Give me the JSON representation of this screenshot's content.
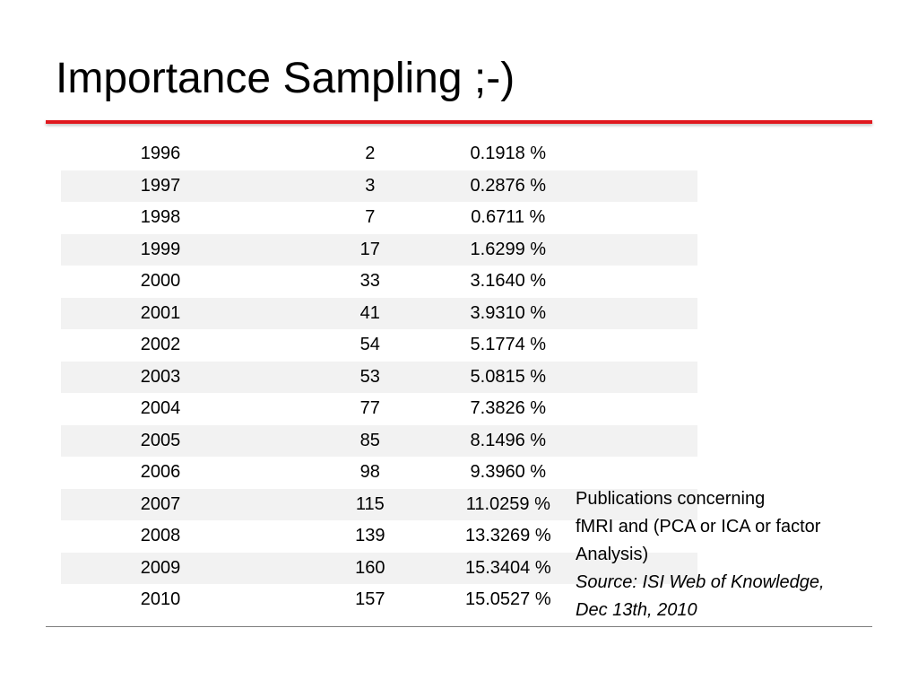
{
  "slide": {
    "title": "Importance Sampling ;-)"
  },
  "table": {
    "rows": [
      {
        "year": "1996",
        "count": "2",
        "percent": "0.1918 %"
      },
      {
        "year": "1997",
        "count": "3",
        "percent": "0.2876 %"
      },
      {
        "year": "1998",
        "count": "7",
        "percent": "0.6711 %"
      },
      {
        "year": "1999",
        "count": "17",
        "percent": "1.6299 %"
      },
      {
        "year": "2000",
        "count": "33",
        "percent": "3.1640 %"
      },
      {
        "year": "2001",
        "count": "41",
        "percent": "3.9310 %"
      },
      {
        "year": "2002",
        "count": "54",
        "percent": "5.1774 %"
      },
      {
        "year": "2003",
        "count": "53",
        "percent": "5.0815 %"
      },
      {
        "year": "2004",
        "count": "77",
        "percent": "7.3826 %"
      },
      {
        "year": "2005",
        "count": "85",
        "percent": "8.1496 %"
      },
      {
        "year": "2006",
        "count": "98",
        "percent": "9.3960 %"
      },
      {
        "year": "2007",
        "count": "115",
        "percent": "11.0259 %"
      },
      {
        "year": "2008",
        "count": "139",
        "percent": "13.3269 %"
      },
      {
        "year": "2009",
        "count": "160",
        "percent": "15.3404 %"
      },
      {
        "year": "2010",
        "count": "157",
        "percent": "15.0527 %"
      }
    ]
  },
  "caption": {
    "line1": "Publications concerning",
    "line2": "fMRI and (PCA or ICA or factor",
    "line3": "Analysis)",
    "source1": "Source: ISI Web of Knowledge,",
    "source2": "Dec 13th, 2010"
  },
  "colors": {
    "accent_rule": "#e0181e",
    "row_shade": "#f2f2f2"
  }
}
